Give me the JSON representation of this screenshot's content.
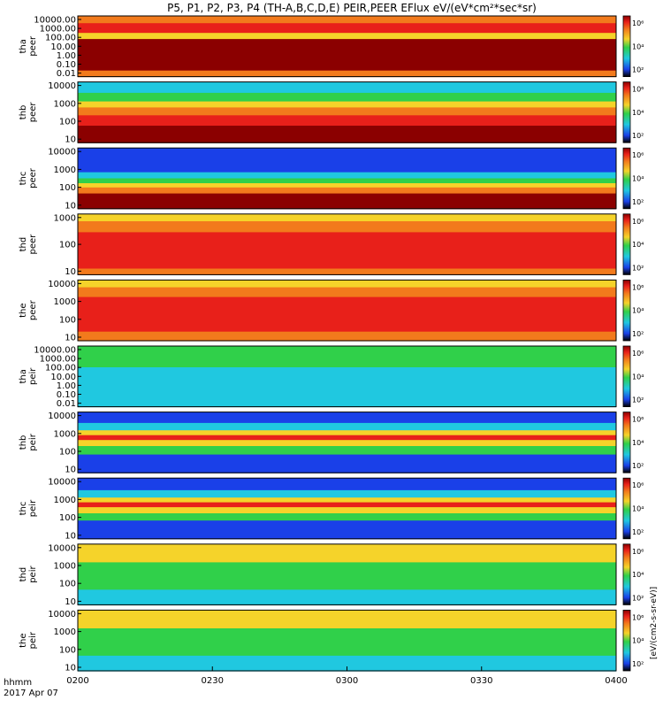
{
  "title": "P5, P1, P2, P3, P4 (TH-A,B,C,D,E) PEIR,PEER EFlux eV/(eV*cm²*sec*sr)",
  "time_axis": {
    "label_line1": "hhmm",
    "label_line2": "2017 Apr 07",
    "ticks": [
      "0200",
      "0230",
      "0300",
      "0330",
      "0400"
    ]
  },
  "colorbar_label": "[eV/(cm2-s-sr-eV)]",
  "colorbar_ticks": [
    "10²",
    "10⁴",
    "10⁶"
  ],
  "colors": {
    "dark_red": "#8b0000",
    "red": "#e8201a",
    "orange": "#f27a1c",
    "yellow": "#f5d32a",
    "green": "#30d04a",
    "cyan": "#20c8e0",
    "blue": "#1a40e8",
    "black": "#000000"
  },
  "chart_data": [
    {
      "type": "heatmap",
      "probe": "tha",
      "species": "peer",
      "y_scale": "log",
      "y_ticks": [
        "10000.00",
        "1000.00",
        "100.00",
        "10.00",
        "1.00",
        "0.10",
        "0.01"
      ],
      "bands": [
        {
          "from_frac": 0,
          "to_frac": 0.12,
          "color": "orange"
        },
        {
          "from_frac": 0.12,
          "to_frac": 0.28,
          "color": "red"
        },
        {
          "from_frac": 0.28,
          "to_frac": 0.38,
          "color": "yellow"
        },
        {
          "from_frac": 0.38,
          "to_frac": 0.9,
          "color": "dark_red"
        },
        {
          "from_frac": 0.9,
          "to_frac": 1,
          "color": "orange"
        }
      ]
    },
    {
      "type": "heatmap",
      "probe": "thb",
      "species": "peer",
      "y_scale": "log",
      "y_ticks": [
        "10000",
        "1000",
        "100",
        "10"
      ],
      "bands": [
        {
          "from_frac": 0,
          "to_frac": 0.18,
          "color": "cyan"
        },
        {
          "from_frac": 0.18,
          "to_frac": 0.32,
          "color": "green"
        },
        {
          "from_frac": 0.32,
          "to_frac": 0.42,
          "color": "yellow"
        },
        {
          "from_frac": 0.42,
          "to_frac": 0.55,
          "color": "orange"
        },
        {
          "from_frac": 0.55,
          "to_frac": 0.72,
          "color": "red"
        },
        {
          "from_frac": 0.72,
          "to_frac": 1,
          "color": "dark_red"
        }
      ]
    },
    {
      "type": "heatmap",
      "probe": "thc",
      "species": "peer",
      "y_scale": "log",
      "y_ticks": [
        "10000",
        "1000",
        "100",
        "10"
      ],
      "bands": [
        {
          "from_frac": 0,
          "to_frac": 0.4,
          "color": "blue"
        },
        {
          "from_frac": 0.4,
          "to_frac": 0.5,
          "color": "cyan"
        },
        {
          "from_frac": 0.5,
          "to_frac": 0.58,
          "color": "green"
        },
        {
          "from_frac": 0.58,
          "to_frac": 0.65,
          "color": "yellow"
        },
        {
          "from_frac": 0.65,
          "to_frac": 0.75,
          "color": "orange"
        },
        {
          "from_frac": 0.75,
          "to_frac": 1,
          "color": "dark_red"
        }
      ]
    },
    {
      "type": "heatmap",
      "probe": "thd",
      "species": "peer",
      "y_scale": "log",
      "y_ticks": [
        "1000",
        "100",
        "10"
      ],
      "bands": [
        {
          "from_frac": 0,
          "to_frac": 0.12,
          "color": "yellow"
        },
        {
          "from_frac": 0.12,
          "to_frac": 0.3,
          "color": "orange"
        },
        {
          "from_frac": 0.3,
          "to_frac": 0.9,
          "color": "red"
        },
        {
          "from_frac": 0.9,
          "to_frac": 1,
          "color": "orange"
        }
      ]
    },
    {
      "type": "heatmap",
      "probe": "the",
      "species": "peer",
      "y_scale": "log",
      "y_ticks": [
        "10000",
        "1000",
        "100",
        "10"
      ],
      "bands": [
        {
          "from_frac": 0,
          "to_frac": 0.12,
          "color": "yellow"
        },
        {
          "from_frac": 0.12,
          "to_frac": 0.28,
          "color": "orange"
        },
        {
          "from_frac": 0.28,
          "to_frac": 0.85,
          "color": "red"
        },
        {
          "from_frac": 0.85,
          "to_frac": 1,
          "color": "orange"
        }
      ]
    },
    {
      "type": "heatmap",
      "probe": "tha",
      "species": "peir",
      "y_scale": "log",
      "y_ticks": [
        "10000.00",
        "1000.00",
        "100.00",
        "10.00",
        "1.00",
        "0.10",
        "0.01"
      ],
      "bands": [
        {
          "from_frac": 0,
          "to_frac": 0.12,
          "color": "green"
        },
        {
          "from_frac": 0.12,
          "to_frac": 0.35,
          "color": "green"
        },
        {
          "from_frac": 0.35,
          "to_frac": 1,
          "color": "cyan"
        }
      ]
    },
    {
      "type": "heatmap",
      "probe": "thb",
      "species": "peir",
      "y_scale": "log",
      "y_ticks": [
        "10000",
        "1000",
        "100",
        "10"
      ],
      "bands": [
        {
          "from_frac": 0,
          "to_frac": 0.18,
          "color": "blue"
        },
        {
          "from_frac": 0.18,
          "to_frac": 0.3,
          "color": "cyan"
        },
        {
          "from_frac": 0.3,
          "to_frac": 0.38,
          "color": "yellow"
        },
        {
          "from_frac": 0.38,
          "to_frac": 0.46,
          "color": "red"
        },
        {
          "from_frac": 0.46,
          "to_frac": 0.56,
          "color": "yellow"
        },
        {
          "from_frac": 0.56,
          "to_frac": 0.7,
          "color": "green"
        },
        {
          "from_frac": 0.7,
          "to_frac": 1,
          "color": "blue"
        }
      ]
    },
    {
      "type": "heatmap",
      "probe": "thc",
      "species": "peir",
      "y_scale": "log",
      "y_ticks": [
        "10000",
        "1000",
        "100",
        "10"
      ],
      "bands": [
        {
          "from_frac": 0,
          "to_frac": 0.2,
          "color": "blue"
        },
        {
          "from_frac": 0.2,
          "to_frac": 0.32,
          "color": "cyan"
        },
        {
          "from_frac": 0.32,
          "to_frac": 0.4,
          "color": "yellow"
        },
        {
          "from_frac": 0.4,
          "to_frac": 0.48,
          "color": "red"
        },
        {
          "from_frac": 0.48,
          "to_frac": 0.58,
          "color": "yellow"
        },
        {
          "from_frac": 0.58,
          "to_frac": 0.7,
          "color": "green"
        },
        {
          "from_frac": 0.7,
          "to_frac": 1,
          "color": "blue"
        }
      ]
    },
    {
      "type": "heatmap",
      "probe": "thd",
      "species": "peir",
      "y_scale": "log",
      "y_ticks": [
        "10000",
        "1000",
        "100",
        "10"
      ],
      "bands": [
        {
          "from_frac": 0,
          "to_frac": 0.3,
          "color": "yellow"
        },
        {
          "from_frac": 0.3,
          "to_frac": 0.75,
          "color": "green"
        },
        {
          "from_frac": 0.75,
          "to_frac": 1,
          "color": "cyan"
        }
      ]
    },
    {
      "type": "heatmap",
      "probe": "the",
      "species": "peir",
      "y_scale": "log",
      "y_ticks": [
        "10000",
        "1000",
        "100",
        "10"
      ],
      "bands": [
        {
          "from_frac": 0,
          "to_frac": 0.3,
          "color": "yellow"
        },
        {
          "from_frac": 0.3,
          "to_frac": 0.75,
          "color": "green"
        },
        {
          "from_frac": 0.75,
          "to_frac": 1,
          "color": "cyan"
        }
      ]
    }
  ]
}
